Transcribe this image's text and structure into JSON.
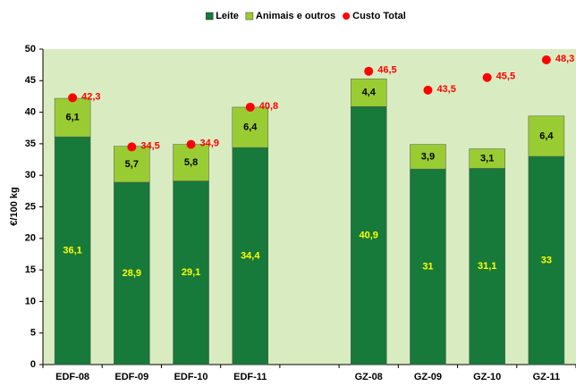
{
  "chart_data": {
    "type": "bar",
    "stacked": true,
    "y_label": "€/100 kg",
    "categories": [
      "EDF-08",
      "EDF-09",
      "EDF-10",
      "EDF-11",
      null,
      "GZ-08",
      "GZ-09",
      "GZ-10",
      "GZ-11"
    ],
    "series": [
      {
        "name": "Leite",
        "color": "#17793a",
        "label_color": "#ffff00",
        "values": [
          36.1,
          28.9,
          29.1,
          34.4,
          null,
          40.9,
          31,
          31.1,
          33
        ],
        "value_labels": [
          "36,1",
          "28,9",
          "29,1",
          "34,4",
          null,
          "40,9",
          "31",
          "31,1",
          "33"
        ]
      },
      {
        "name": "Animais e outros",
        "color": "#99cc33",
        "label_color": "#000000",
        "values": [
          6.1,
          5.7,
          5.8,
          6.4,
          null,
          4.4,
          3.9,
          3.1,
          6.4
        ],
        "value_labels": [
          "6,1",
          "5,7",
          "5,8",
          "6,4",
          null,
          "4,4",
          "3,9",
          "3,1",
          "6,4"
        ]
      },
      {
        "name": "Custo Total",
        "type": "scatter",
        "color": "#ff0000",
        "label_color": "#ff0000",
        "values": [
          42.3,
          34.5,
          34.9,
          40.8,
          null,
          46.5,
          43.5,
          45.5,
          48.3
        ],
        "value_labels": [
          "42,3",
          "34,5",
          "34,9",
          "40,8",
          null,
          "46,5",
          "43,5",
          "45,5",
          "48,3"
        ]
      }
    ],
    "ylim": [
      0,
      50
    ],
    "yticks": [
      0,
      5,
      10,
      15,
      20,
      25,
      30,
      35,
      40,
      45,
      50
    ],
    "grid": false,
    "legend": "top",
    "background": "#d9ecc1"
  }
}
